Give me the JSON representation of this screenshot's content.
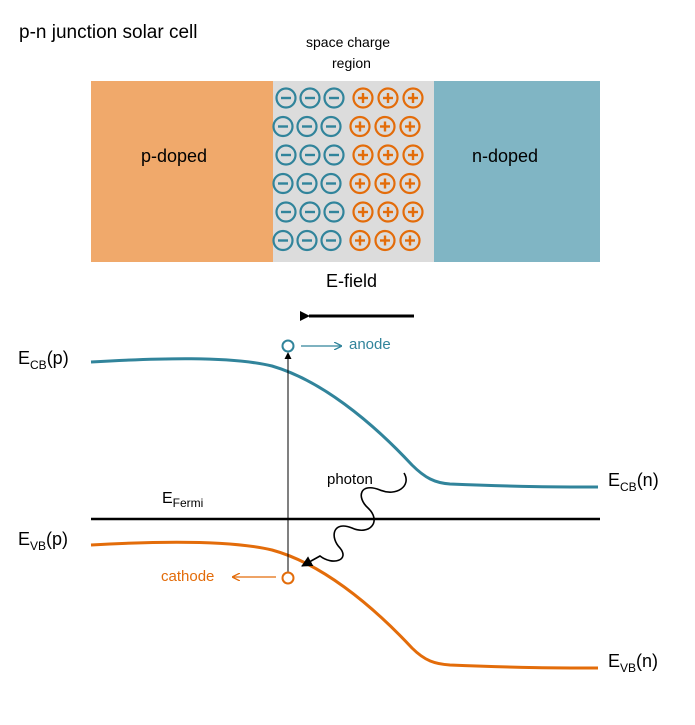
{
  "title": "p-n junction solar cell",
  "space_charge": {
    "line1": "space charge",
    "line2": "region"
  },
  "regions": {
    "p_label": "p-doped",
    "n_label": "n-doped"
  },
  "efield_label": "E-field",
  "levels": {
    "ecb_p": {
      "main": "E",
      "sub": "CB",
      "tail": "(p)"
    },
    "ecb_n": {
      "main": "E",
      "sub": "CB",
      "tail": "(n)"
    },
    "evb_p": {
      "main": "E",
      "sub": "VB",
      "tail": "(p)"
    },
    "evb_n": {
      "main": "E",
      "sub": "VB",
      "tail": "(n)"
    },
    "efermi": {
      "main": "E",
      "sub": "Fermi"
    }
  },
  "labels": {
    "anode": "anode",
    "cathode": "cathode",
    "photon": "photon"
  },
  "charges": {
    "minus": "−",
    "plus": "+"
  },
  "colors": {
    "p_region": "#f0a96b",
    "n_region": "#80b5c4",
    "depletion": "#dcdcdc",
    "conduction": "#31849b",
    "valence": "#e36c0a",
    "fermi": "#000000"
  }
}
